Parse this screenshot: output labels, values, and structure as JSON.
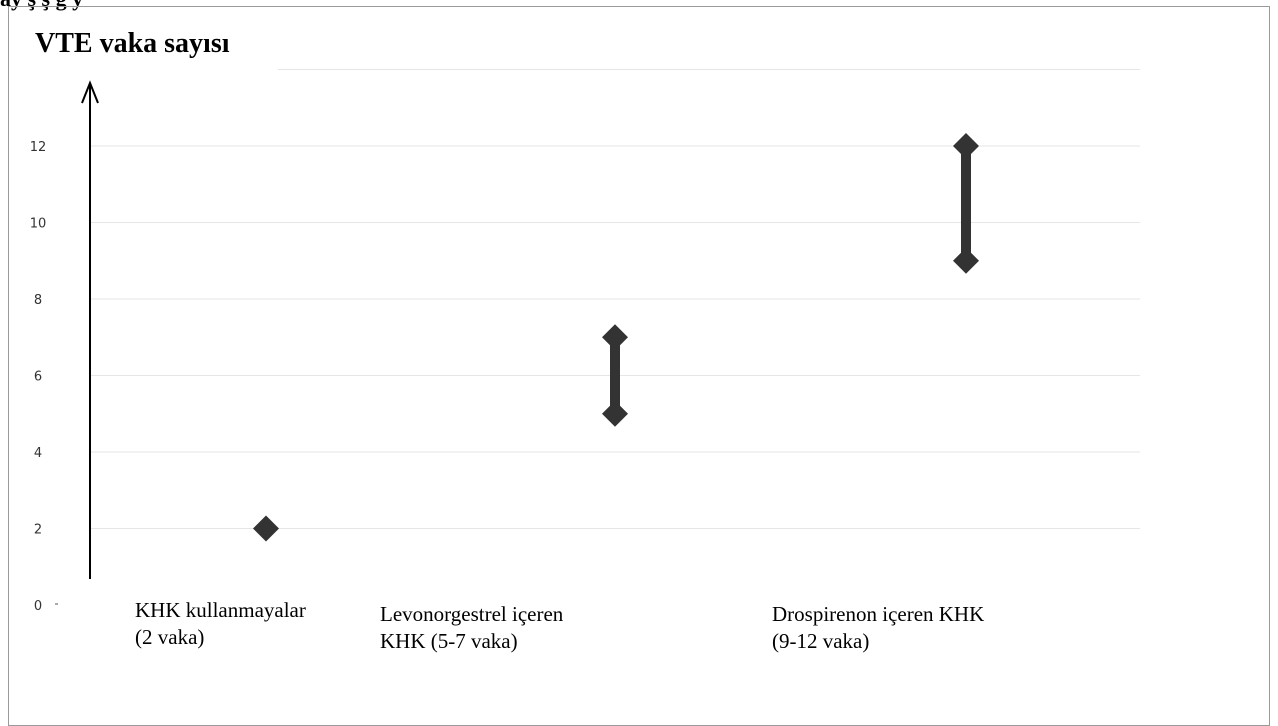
{
  "page": {
    "header_fragment": "ay    ş        ş       g               y   "
  },
  "chart_data": {
    "type": "range",
    "title": "VTE vaka sayısı",
    "ylim": [
      0,
      14
    ],
    "yticks": [
      0,
      2,
      4,
      6,
      8,
      10,
      12
    ],
    "grid": true,
    "categories": [
      {
        "label_line1": "KHK kullanmayalar",
        "label_line2": "(2 vaka)",
        "min": 2,
        "max": 2
      },
      {
        "label_line1": "Levonorgestrel içeren",
        "label_line2": "KHK (5-7 vaka)",
        "min": 5,
        "max": 7
      },
      {
        "label_line1": "Drospirenon içeren KHK",
        "label_line2": "(9-12 vaka)",
        "min": 9,
        "max": 12
      }
    ],
    "colors": {
      "marker": "#333333",
      "grid": "#e6e6e6",
      "axis": "#000000"
    }
  }
}
